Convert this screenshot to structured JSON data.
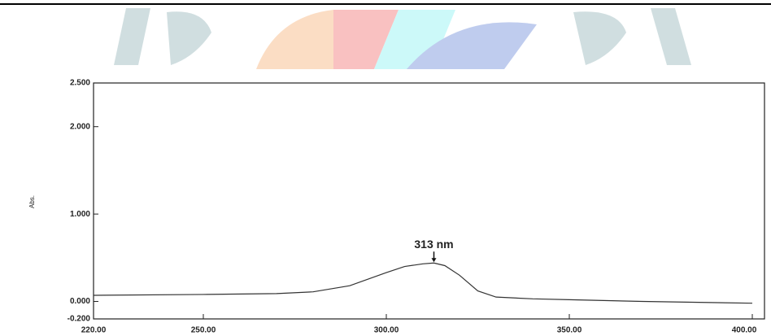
{
  "chart_data": {
    "type": "line",
    "y_label": "Abs.",
    "annotation": "313 nm",
    "x": [
      220,
      250,
      270,
      280,
      290,
      300,
      305,
      310,
      313,
      316,
      320,
      325,
      330,
      340,
      350,
      370,
      400
    ],
    "series": [
      {
        "color": "#333333",
        "values": [
          0.07,
          0.08,
          0.09,
          0.11,
          0.18,
          0.33,
          0.4,
          0.43,
          0.44,
          0.41,
          0.3,
          0.12,
          0.05,
          0.03,
          0.02,
          0.0,
          -0.02
        ]
      }
    ],
    "xlim": [
      220,
      400
    ],
    "xticks": [
      {
        "value": 220,
        "label": "220.00"
      },
      {
        "value": 250,
        "label": "250.00"
      },
      {
        "value": 300,
        "label": "300.00"
      },
      {
        "value": 350,
        "label": "350.00"
      },
      {
        "value": 400,
        "label": "400.00"
      }
    ],
    "ylim": [
      -0.2,
      2.5
    ],
    "yticks": [
      {
        "value": -0.2,
        "label": "-0.200"
      },
      {
        "value": 0,
        "label": "0.000"
      },
      {
        "value": 1,
        "label": "1.000"
      },
      {
        "value": 2,
        "label": "2.000"
      },
      {
        "value": 2.5,
        "label": "2.500"
      }
    ]
  }
}
